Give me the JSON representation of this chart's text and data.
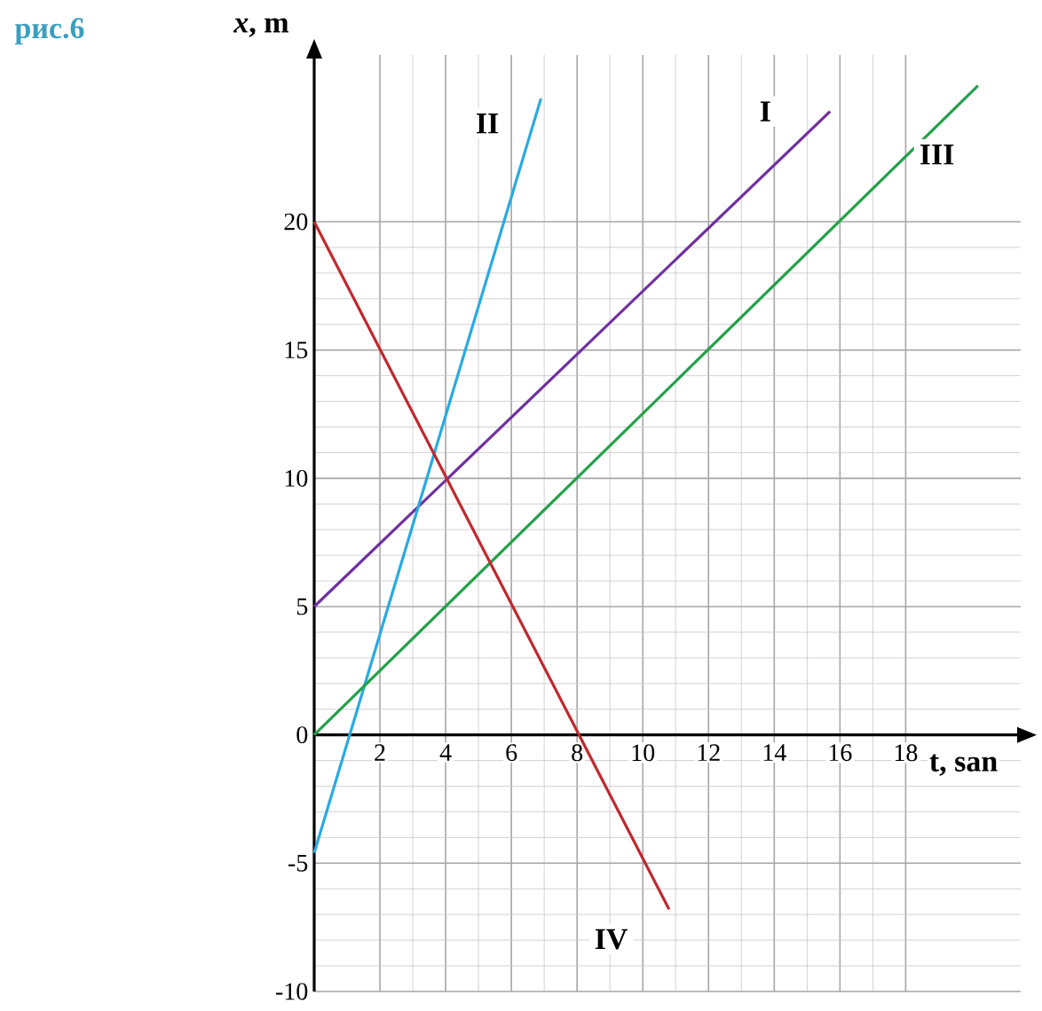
{
  "chart_data": {
    "type": "line",
    "title": "рис.6",
    "xlabel": "t, san",
    "ylabel": "*x*, m",
    "xlim": [
      0,
      21.5
    ],
    "ylim": [
      -10,
      26.5
    ],
    "xticks": [
      2,
      4,
      6,
      8,
      10,
      12,
      14,
      16,
      18
    ],
    "yticks": [
      -10,
      -5,
      0,
      5,
      10,
      15,
      20
    ],
    "grid": true,
    "series": [
      {
        "name": "I",
        "color": "#7030a0",
        "x": [
          0,
          15.7
        ],
        "values": [
          5,
          24.3
        ]
      },
      {
        "name": "II",
        "color": "#29aae1",
        "x": [
          0,
          6.9
        ],
        "values": [
          -4.6,
          24.8
        ]
      },
      {
        "name": "III",
        "color": "#23a14a",
        "x": [
          0,
          20.2
        ],
        "values": [
          0,
          25.3
        ]
      },
      {
        "name": "IV",
        "color": "#c0282d",
        "x": [
          0,
          10.8
        ],
        "values": [
          20,
          -6.8
        ]
      }
    ]
  }
}
